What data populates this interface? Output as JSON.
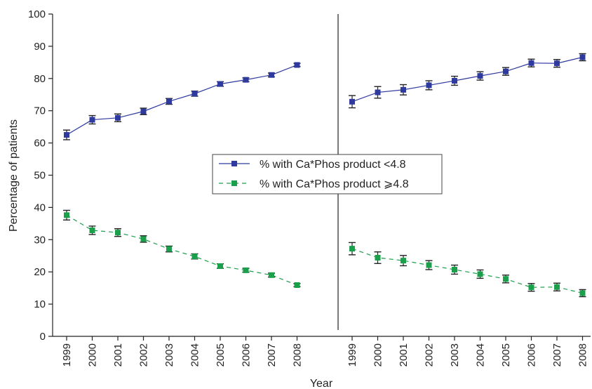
{
  "chart_data": {
    "type": "line",
    "xlabel": "Year",
    "ylabel": "Percentage of patients",
    "ylim": [
      0,
      100
    ],
    "yticks": [
      "0",
      "10",
      "20",
      "30",
      "40",
      "50",
      "60",
      "70",
      "80",
      "90",
      "100"
    ],
    "grid": false,
    "legend_position": "center",
    "panels": [
      {
        "categories": [
          "1999",
          "2000",
          "2001",
          "2002",
          "2003",
          "2004",
          "2005",
          "2006",
          "2007",
          "2008"
        ],
        "series": [
          {
            "name": "% with Ca*Phos product <4.8",
            "color": "#2e3a9e",
            "line_style": "solid",
            "values": [
              62.5,
              67.2,
              67.8,
              69.8,
              72.9,
              75.3,
              78.3,
              79.6,
              81.1,
              84.2
            ],
            "error": [
              1.5,
              1.3,
              1.2,
              1.0,
              0.9,
              0.8,
              0.7,
              0.6,
              0.6,
              0.5
            ]
          },
          {
            "name": "% with Ca*Phos product ⩾4.8",
            "color": "#1aa04a",
            "line_style": "dashed",
            "values": [
              37.6,
              32.9,
              32.2,
              30.2,
              27.1,
              24.8,
              21.8,
              20.5,
              19.0,
              15.9
            ],
            "error": [
              1.5,
              1.3,
              1.2,
              1.0,
              0.9,
              0.8,
              0.7,
              0.6,
              0.6,
              0.5
            ]
          }
        ]
      },
      {
        "categories": [
          "1999",
          "2000",
          "2001",
          "2002",
          "2003",
          "2004",
          "2005",
          "2006",
          "2007",
          "2008"
        ],
        "series": [
          {
            "name": "% with Ca*Phos product <4.8",
            "color": "#2e3a9e",
            "line_style": "solid",
            "values": [
              72.8,
              75.7,
              76.5,
              77.9,
              79.3,
              80.8,
              82.2,
              84.8,
              84.7,
              86.6
            ],
            "error": [
              1.9,
              1.8,
              1.6,
              1.4,
              1.4,
              1.3,
              1.2,
              1.2,
              1.2,
              1.1
            ]
          },
          {
            "name": "% with Ca*Phos product ⩾4.8",
            "color": "#1aa04a",
            "line_style": "dashed",
            "values": [
              27.2,
              24.4,
              23.5,
              22.1,
              20.7,
              19.3,
              17.8,
              15.2,
              15.3,
              13.4
            ],
            "error": [
              1.9,
              1.8,
              1.6,
              1.4,
              1.4,
              1.3,
              1.2,
              1.2,
              1.2,
              1.1
            ]
          }
        ]
      }
    ]
  }
}
